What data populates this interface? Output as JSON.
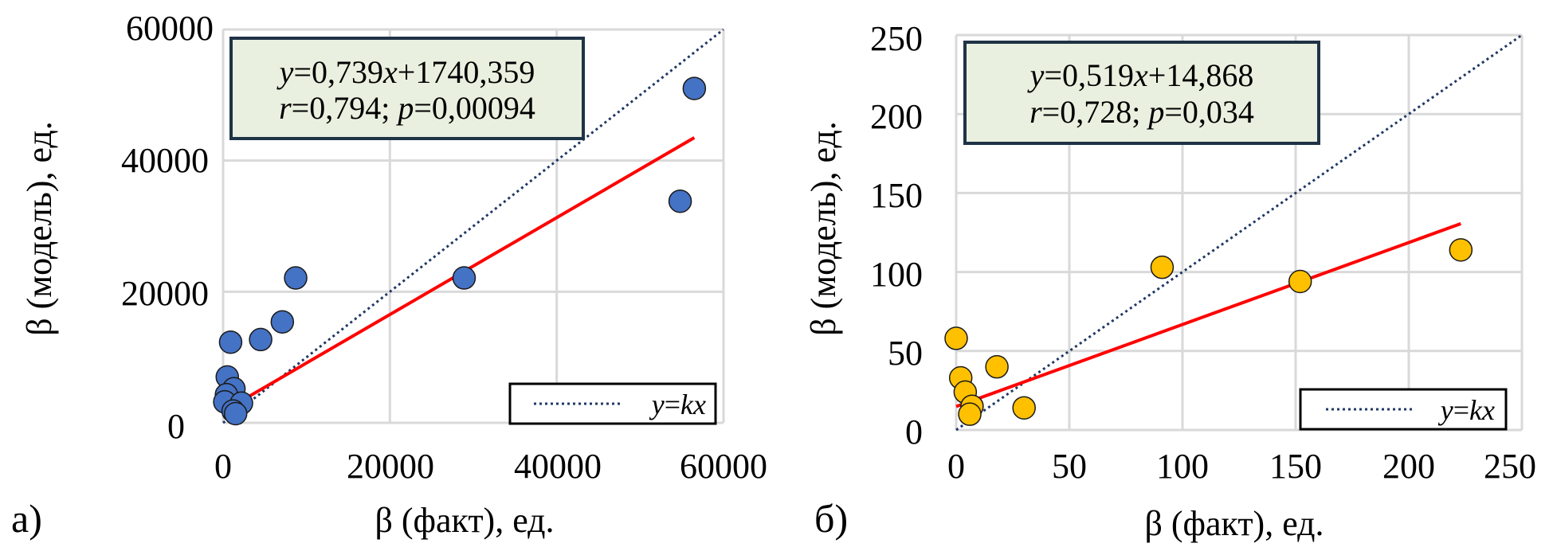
{
  "colors": {
    "point_a": "#4472c4",
    "point_b": "#ffc000",
    "trend": "#ff0000",
    "identity": "#1f3864",
    "box_fill": "#eaf0df",
    "box_border": "#1f3346"
  },
  "chart_data": [
    {
      "type": "scatter",
      "panel_label": "а)",
      "xlabel": "β (факт), ед.",
      "ylabel": "β (модель), ед.",
      "xlim": [
        0,
        60000
      ],
      "ylim": [
        0,
        60000
      ],
      "xticks": [
        "0",
        "20000",
        "40000",
        "60000"
      ],
      "yticks": [
        "0",
        "20000",
        "40000",
        "60000"
      ],
      "grid": true,
      "equation": {
        "y": "y",
        "eq1_rest": "=0,739",
        "x": "x",
        "eq1_end": "+1740,359",
        "r": "r",
        "eq2_r": "=0,794; ",
        "p": "p",
        "eq2_p": "=0,00094"
      },
      "trend": {
        "slope": 0.739,
        "intercept": 1740.359,
        "x_range": [
          300,
          56500
        ]
      },
      "legend": {
        "label_y": "y",
        "label_eq": "=",
        "label_kx": "kx",
        "placement": "bottom-right"
      },
      "points": [
        {
          "x": 56500,
          "y": 51000
        },
        {
          "x": 54800,
          "y": 33800
        },
        {
          "x": 28900,
          "y": 22100
        },
        {
          "x": 8700,
          "y": 22100
        },
        {
          "x": 7100,
          "y": 15400
        },
        {
          "x": 4500,
          "y": 12700
        },
        {
          "x": 900,
          "y": 12300
        },
        {
          "x": 500,
          "y": 7000
        },
        {
          "x": 1300,
          "y": 5200
        },
        {
          "x": 400,
          "y": 4300
        },
        {
          "x": 200,
          "y": 3200
        },
        {
          "x": 2200,
          "y": 3000
        },
        {
          "x": 1200,
          "y": 1800
        },
        {
          "x": 1500,
          "y": 1400
        }
      ]
    },
    {
      "type": "scatter",
      "panel_label": "б)",
      "xlabel": "β (факт), ед.",
      "ylabel": "β (модель), ед.",
      "xlim": [
        0,
        250
      ],
      "ylim": [
        0,
        250
      ],
      "xticks": [
        "0",
        "50",
        "100",
        "150",
        "200",
        "250"
      ],
      "yticks": [
        "0",
        "50",
        "100",
        "150",
        "200",
        "250"
      ],
      "grid": true,
      "equation": {
        "y": "y",
        "eq1_rest": "=0,519",
        "x": "x",
        "eq1_end": "+14,868",
        "r": "r",
        "eq2_r": "=0,728; ",
        "p": "p",
        "eq2_p": "=0,034"
      },
      "trend": {
        "slope": 0.519,
        "intercept": 14.868,
        "x_range": [
          0,
          223
        ]
      },
      "legend": {
        "label_y": "y",
        "label_eq": "=",
        "label_kx": "kx",
        "placement": "bottom-right"
      },
      "points": [
        {
          "x": 223,
          "y": 114
        },
        {
          "x": 152,
          "y": 94
        },
        {
          "x": 91,
          "y": 103
        },
        {
          "x": 0,
          "y": 58
        },
        {
          "x": 18,
          "y": 40
        },
        {
          "x": 2,
          "y": 33
        },
        {
          "x": 4,
          "y": 24
        },
        {
          "x": 7,
          "y": 15
        },
        {
          "x": 6,
          "y": 10
        },
        {
          "x": 30,
          "y": 14
        }
      ]
    }
  ]
}
